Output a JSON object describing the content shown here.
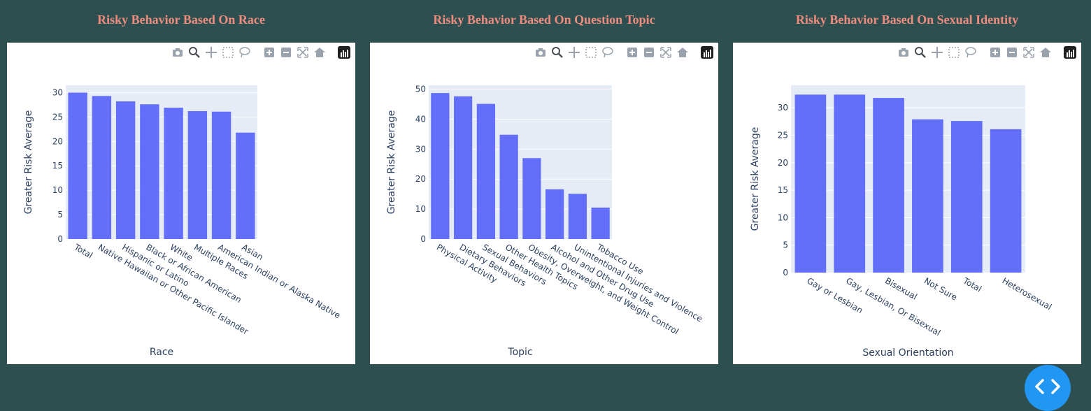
{
  "colors": {
    "background": "#2e4f4f",
    "title": "#f08c7e",
    "bar": "#636efa",
    "plot_bg": "#e5ecf6",
    "axis_text": "#2a3f5f",
    "fab": "#2196f3"
  },
  "modebar_icons": [
    "camera-icon",
    "zoom-icon",
    "pan-icon",
    "box-select-icon",
    "lasso-select-icon",
    "zoom-in-icon",
    "zoom-out-icon",
    "autoscale-icon",
    "reset-axes-icon",
    "plotly-logo-icon"
  ],
  "fab_icon": "code-brackets-icon",
  "chart_data": [
    {
      "type": "bar",
      "title": "Risky Behavior Based On Race",
      "xlabel": "Race",
      "ylabel": "Greater Risk Average",
      "categories": [
        "Total",
        "Native Hawaiian or Other Pacific Islander",
        "Hispanic or Latino",
        "Black or African American",
        "White",
        "Multiple Races",
        "American Indian or Alaska Native",
        "Asian"
      ],
      "values": [
        30.0,
        29.3,
        28.2,
        27.6,
        26.9,
        26.2,
        26.1,
        21.8
      ],
      "ylim": [
        0,
        31.5
      ],
      "yticks": [
        0,
        5,
        10,
        15,
        20,
        25,
        30
      ],
      "grid": true
    },
    {
      "type": "bar",
      "title": "Risky Behavior Based On Question Topic",
      "xlabel": "Topic",
      "ylabel": "Greater Risk Average",
      "categories": [
        "Physical Activity",
        "Dietary Behaviors",
        "Sexual Behaviors",
        "Other Health Topics",
        "Obesity, Overweight, and Weight Control",
        "Alcohol and Other Drug Use",
        "Unintentional Injuries and Violence",
        "Tobacco Use"
      ],
      "values": [
        48.7,
        47.6,
        45.1,
        34.8,
        27.0,
        16.6,
        15.1,
        10.5
      ],
      "ylim": [
        0,
        51.3
      ],
      "yticks": [
        0,
        10,
        20,
        30,
        40,
        50
      ],
      "grid": true
    },
    {
      "type": "bar",
      "title": "Risky Behavior Based On Sexual Identity",
      "xlabel": "Sexual Orientation",
      "ylabel": "Greater Risk Average",
      "categories": [
        "Gay or Lesbian",
        "Gay, Lesbian, Or Bisexual",
        "Bisexual",
        "Not Sure",
        "Total",
        "Heterosexual"
      ],
      "values": [
        32.4,
        32.4,
        31.8,
        27.9,
        27.6,
        26.1
      ],
      "ylim": [
        0,
        34.1
      ],
      "yticks": [
        0,
        5,
        10,
        15,
        20,
        25,
        30
      ],
      "grid": true
    }
  ]
}
